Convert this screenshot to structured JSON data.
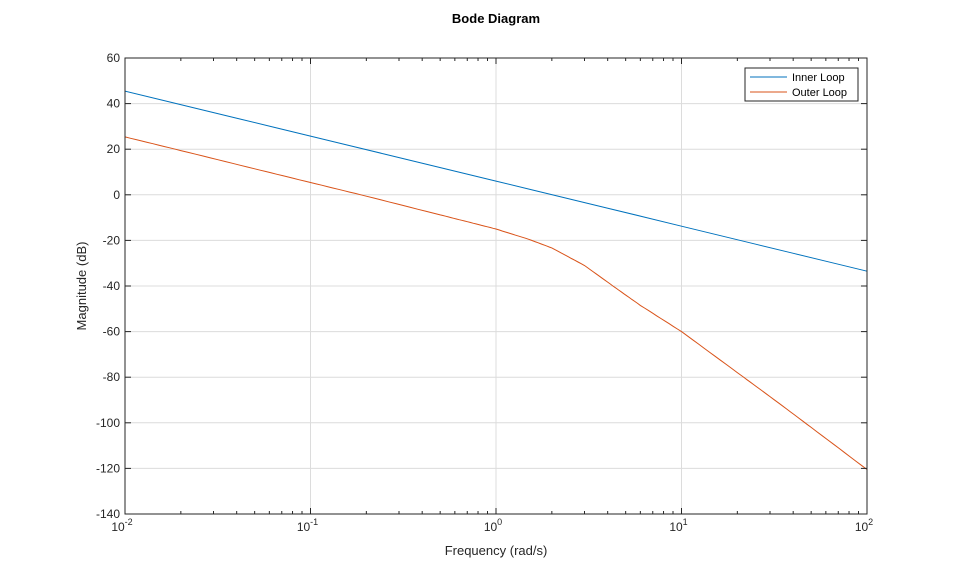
{
  "chart_data": {
    "type": "line",
    "title": "Bode Diagram",
    "xlabel": "Frequency (rad/s)",
    "ylabel": "Magnitude (dB)",
    "xscale": "log",
    "xlim": [
      0.01,
      100
    ],
    "ylim": [
      -140,
      60
    ],
    "xticks": [
      {
        "v": 0.01,
        "base": "10",
        "exp": "-2"
      },
      {
        "v": 0.1,
        "base": "10",
        "exp": "-1"
      },
      {
        "v": 1,
        "base": "10",
        "exp": "0"
      },
      {
        "v": 10,
        "base": "10",
        "exp": "1"
      },
      {
        "v": 100,
        "base": "10",
        "exp": "2"
      }
    ],
    "yticks": [
      60,
      40,
      20,
      0,
      -20,
      -40,
      -60,
      -80,
      -100,
      -120,
      -140
    ],
    "grid": true,
    "legend_position": "top-right",
    "series": [
      {
        "name": "Inner Loop",
        "color": "#0072BD",
        "x": [
          0.01,
          1,
          100
        ],
        "y": [
          45.5,
          6,
          -33.5
        ]
      },
      {
        "name": "Outer Loop",
        "color": "#D95319",
        "x": [
          0.01,
          0.02,
          0.05,
          0.1,
          0.2,
          0.5,
          0.7,
          1,
          1.5,
          2,
          3,
          4.27,
          6,
          10,
          20,
          30,
          50,
          100
        ],
        "y": [
          25.4,
          19.4,
          11.4,
          5.4,
          -0.6,
          -8.8,
          -11.8,
          -15,
          -19.5,
          -23.3,
          -31,
          -40,
          -48.5,
          -60,
          -78,
          -88.5,
          -102,
          -120.5
        ]
      }
    ]
  }
}
